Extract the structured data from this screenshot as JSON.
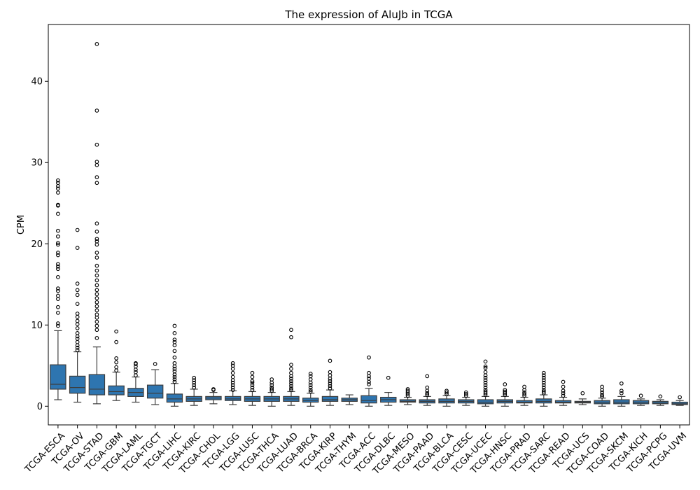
{
  "chart_data": {
    "type": "box",
    "title": "The expression of AluJb in TCGA",
    "xlabel": "",
    "ylabel": "CPM",
    "ylim": [
      -2.3,
      47
    ],
    "yticks": [
      0,
      10,
      20,
      30,
      40
    ],
    "grid": false,
    "legend": "none",
    "box_color": "#2e75b0",
    "categories": [
      "TCGA-ESCA",
      "TCGA-OV",
      "TCGA-STAD",
      "TCGA-GBM",
      "TCGA-LAML",
      "TCGA-TGCT",
      "TCGA-LIHC",
      "TCGA-KIRC",
      "TCGA-CHOL",
      "TCGA-LGG",
      "TCGA-LUSC",
      "TCGA-THCA",
      "TCGA-LUAD",
      "TCGA-BRCA",
      "TCGA-KIRP",
      "TCGA-THYM",
      "TCGA-ACC",
      "TCGA-DLBC",
      "TCGA-MESO",
      "TCGA-PAAD",
      "TCGA-BLCA",
      "TCGA-CESC",
      "TCGA-UCEC",
      "TCGA-HNSC",
      "TCGA-PRAD",
      "TCGA-SARC",
      "TCGA-READ",
      "TCGA-UCS",
      "TCGA-COAD",
      "TCGA-SKCM",
      "TCGA-KICH",
      "TCGA-PCPG",
      "TCGA-UVM"
    ],
    "boxes": [
      {
        "whislo": 0.8,
        "q1": 2.1,
        "med": 2.7,
        "q3": 5.1,
        "whishi": 9.3,
        "fliers": [
          9.9,
          10.2,
          11.5,
          12.2,
          13.2,
          13.6,
          14.2,
          14.5,
          15.9,
          16.9,
          17.2,
          17.5,
          18.6,
          18.9,
          19.9,
          20.1,
          20.9,
          21.6,
          23.7,
          24.7,
          24.8,
          26.3,
          26.8,
          27.1,
          27.5,
          27.8
        ]
      },
      {
        "whislo": 0.5,
        "q1": 1.6,
        "med": 2.3,
        "q3": 3.7,
        "whishi": 6.7,
        "fliers": [
          6.9,
          7.2,
          7.5,
          7.9,
          8.3,
          8.6,
          9.0,
          9.6,
          10.1,
          10.5,
          11.0,
          11.4,
          12.6,
          13.7,
          14.3,
          15.1,
          19.5,
          21.7
        ]
      },
      {
        "whislo": 0.3,
        "q1": 1.4,
        "med": 2.1,
        "q3": 3.9,
        "whishi": 7.3,
        "fliers": [
          8.4,
          9.4,
          9.9,
          10.4,
          10.9,
          11.3,
          11.8,
          12.3,
          12.8,
          13.3,
          13.8,
          14.3,
          14.9,
          15.5,
          16.1,
          16.7,
          17.3,
          18.3,
          18.9,
          19.9,
          20.3,
          20.6,
          21.5,
          22.5,
          27.5,
          28.2,
          29.7,
          30.1,
          32.2,
          36.4,
          44.6
        ]
      },
      {
        "whislo": 0.7,
        "q1": 1.4,
        "med": 1.8,
        "q3": 2.5,
        "whishi": 4.2,
        "fliers": [
          4.4,
          4.8,
          5.4,
          5.9,
          7.9,
          9.2
        ]
      },
      {
        "whislo": 0.5,
        "q1": 1.2,
        "med": 1.7,
        "q3": 2.2,
        "whishi": 3.6,
        "fliers": [
          3.8,
          4.2,
          4.5,
          4.9,
          5.2,
          5.3
        ]
      },
      {
        "whislo": 0.2,
        "q1": 1.0,
        "med": 1.6,
        "q3": 2.6,
        "whishi": 4.5,
        "fliers": [
          5.2
        ]
      },
      {
        "whislo": 0.0,
        "q1": 0.5,
        "med": 0.9,
        "q3": 1.5,
        "whishi": 2.8,
        "fliers": [
          3.0,
          3.3,
          3.6,
          3.9,
          4.3,
          4.6,
          4.9,
          5.3,
          6.0,
          6.8,
          7.5,
          7.9,
          8.2,
          9.0,
          9.9
        ]
      },
      {
        "whislo": 0.1,
        "q1": 0.6,
        "med": 0.9,
        "q3": 1.2,
        "whishi": 2.1,
        "fliers": [
          2.3,
          2.6,
          2.9,
          3.2,
          3.5
        ]
      },
      {
        "whislo": 0.3,
        "q1": 0.8,
        "med": 1.0,
        "q3": 1.2,
        "whishi": 1.7,
        "fliers": [
          2.0,
          2.1
        ]
      },
      {
        "whislo": 0.2,
        "q1": 0.7,
        "med": 0.9,
        "q3": 1.2,
        "whishi": 1.9,
        "fliers": [
          2.0,
          2.3,
          2.6,
          2.9,
          3.2,
          3.6,
          4.1,
          4.6,
          5.0,
          5.3
        ]
      },
      {
        "whislo": 0.1,
        "q1": 0.6,
        "med": 0.9,
        "q3": 1.2,
        "whishi": 1.8,
        "fliers": [
          2.0,
          2.3,
          2.6,
          2.9,
          3.1,
          3.6,
          4.1
        ]
      },
      {
        "whislo": 0.0,
        "q1": 0.6,
        "med": 0.9,
        "q3": 1.2,
        "whishi": 1.7,
        "fliers": [
          1.9,
          2.1,
          2.3,
          2.6,
          2.9,
          3.3
        ]
      },
      {
        "whislo": 0.1,
        "q1": 0.6,
        "med": 0.9,
        "q3": 1.2,
        "whishi": 1.8,
        "fliers": [
          2.0,
          2.2,
          2.5,
          2.8,
          3.1,
          3.4,
          3.7,
          4.1,
          4.6,
          5.1,
          8.5,
          9.4
        ]
      },
      {
        "whislo": 0.0,
        "q1": 0.5,
        "med": 0.7,
        "q3": 1.0,
        "whishi": 1.6,
        "fliers": [
          1.8,
          2.0,
          2.3,
          2.6,
          2.9,
          3.3,
          3.7,
          4.0
        ]
      },
      {
        "whislo": 0.1,
        "q1": 0.6,
        "med": 0.8,
        "q3": 1.2,
        "whishi": 2.0,
        "fliers": [
          2.2,
          2.5,
          2.8,
          3.1,
          3.4,
          3.8,
          4.2,
          5.6
        ]
      },
      {
        "whislo": 0.2,
        "q1": 0.6,
        "med": 0.8,
        "q3": 1.0,
        "whishi": 1.4,
        "fliers": []
      },
      {
        "whislo": 0.0,
        "q1": 0.4,
        "med": 0.7,
        "q3": 1.3,
        "whishi": 2.2,
        "fliers": [
          2.7,
          3.0,
          3.4,
          3.7,
          4.1,
          6.0
        ]
      },
      {
        "whislo": 0.1,
        "q1": 0.5,
        "med": 0.8,
        "q3": 1.1,
        "whishi": 1.7,
        "fliers": [
          3.5
        ]
      },
      {
        "whislo": 0.2,
        "q1": 0.5,
        "med": 0.6,
        "q3": 0.8,
        "whishi": 1.1,
        "fliers": [
          1.3,
          1.5,
          1.7,
          1.9,
          2.1
        ]
      },
      {
        "whislo": 0.1,
        "q1": 0.4,
        "med": 0.6,
        "q3": 0.8,
        "whishi": 1.2,
        "fliers": [
          1.4,
          1.6,
          1.9,
          2.3,
          3.7
        ]
      },
      {
        "whislo": 0.0,
        "q1": 0.4,
        "med": 0.6,
        "q3": 0.9,
        "whishi": 1.3,
        "fliers": [
          1.5,
          1.7,
          1.9
        ]
      },
      {
        "whislo": 0.1,
        "q1": 0.4,
        "med": 0.6,
        "q3": 0.8,
        "whishi": 1.1,
        "fliers": [
          1.3,
          1.5,
          1.7
        ]
      },
      {
        "whislo": 0.0,
        "q1": 0.3,
        "med": 0.5,
        "q3": 0.8,
        "whishi": 1.2,
        "fliers": [
          1.4,
          1.6,
          1.8,
          2.0,
          2.3,
          2.6,
          2.9,
          3.2,
          3.5,
          3.8,
          4.2,
          4.7,
          4.9,
          5.5
        ]
      },
      {
        "whislo": 0.0,
        "q1": 0.4,
        "med": 0.6,
        "q3": 0.8,
        "whishi": 1.2,
        "fliers": [
          1.4,
          1.6,
          1.8,
          2.0,
          2.7
        ]
      },
      {
        "whislo": 0.1,
        "q1": 0.4,
        "med": 0.5,
        "q3": 0.7,
        "whishi": 1.1,
        "fliers": [
          1.3,
          1.5,
          1.7,
          2.0,
          2.4
        ]
      },
      {
        "whislo": 0.0,
        "q1": 0.4,
        "med": 0.6,
        "q3": 0.9,
        "whishi": 1.4,
        "fliers": [
          1.6,
          1.8,
          2.0,
          2.3,
          2.6,
          2.9,
          3.2,
          3.5,
          3.8,
          4.1
        ]
      },
      {
        "whislo": 0.1,
        "q1": 0.4,
        "med": 0.5,
        "q3": 0.7,
        "whishi": 1.1,
        "fliers": [
          1.3,
          1.6,
          1.9,
          2.4,
          3.0
        ]
      },
      {
        "whislo": 0.2,
        "q1": 0.4,
        "med": 0.5,
        "q3": 0.6,
        "whishi": 0.9,
        "fliers": [
          1.6
        ]
      },
      {
        "whislo": 0.0,
        "q1": 0.3,
        "med": 0.5,
        "q3": 0.7,
        "whishi": 1.0,
        "fliers": [
          1.2,
          1.4,
          1.7,
          2.0,
          2.4
        ]
      },
      {
        "whislo": 0.0,
        "q1": 0.3,
        "med": 0.5,
        "q3": 0.8,
        "whishi": 1.2,
        "fliers": [
          1.6,
          1.9,
          2.8
        ]
      },
      {
        "whislo": 0.1,
        "q1": 0.3,
        "med": 0.5,
        "q3": 0.7,
        "whishi": 0.9,
        "fliers": [
          1.3
        ]
      },
      {
        "whislo": 0.1,
        "q1": 0.3,
        "med": 0.4,
        "q3": 0.6,
        "whishi": 0.8,
        "fliers": [
          1.2
        ]
      },
      {
        "whislo": 0.1,
        "q1": 0.2,
        "med": 0.3,
        "q3": 0.5,
        "whishi": 0.7,
        "fliers": [
          1.1
        ]
      }
    ]
  }
}
